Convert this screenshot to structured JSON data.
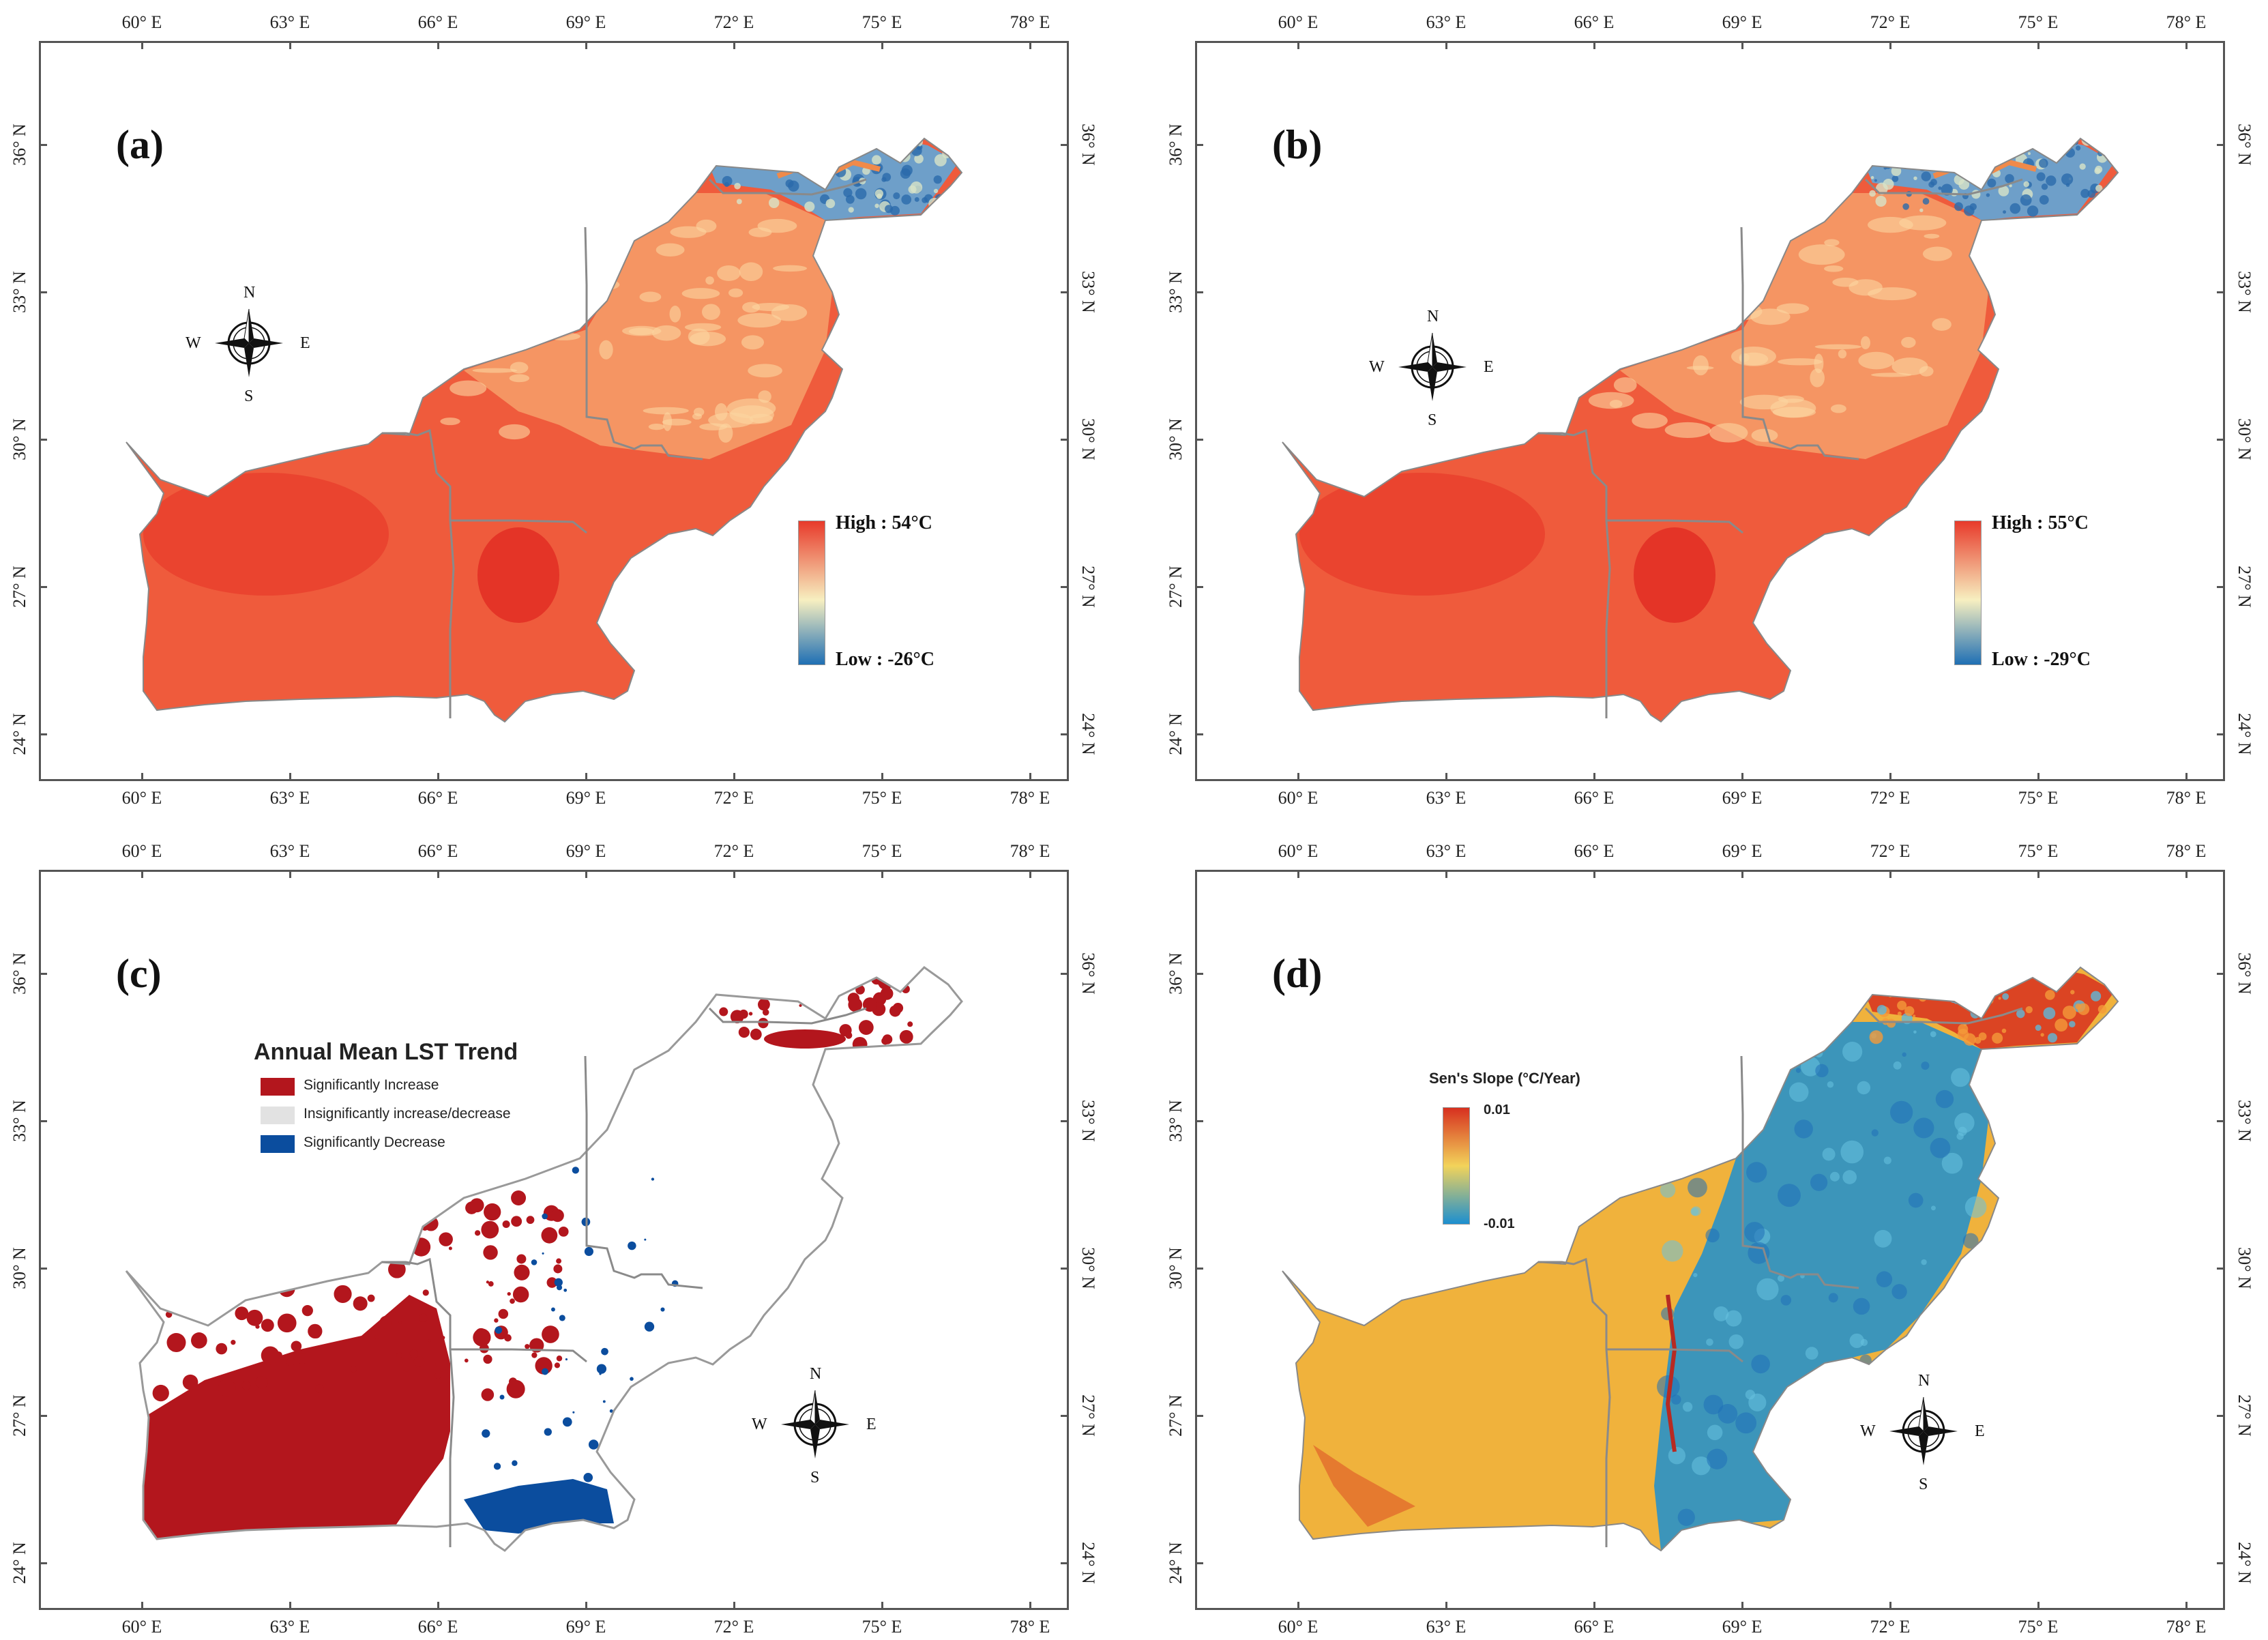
{
  "axes": {
    "lon_labels": [
      "60° E",
      "63° E",
      "66° E",
      "69° E",
      "72° E",
      "75° E",
      "78° E"
    ],
    "lat_labels": [
      "24° N",
      "27° N",
      "30° N",
      "33° N",
      "36° N"
    ]
  },
  "panels": [
    {
      "id": "a",
      "label": "(a)",
      "type": "lst",
      "legend": {
        "high": "High : 54°C",
        "low": "Low : -26°C"
      },
      "compass": {
        "n": "N",
        "s": "S",
        "e": "E",
        "w": "W"
      }
    },
    {
      "id": "b",
      "label": "(b)",
      "type": "lst",
      "legend": {
        "high": "High : 55°C",
        "low": "Low : -29°C"
      },
      "compass": {
        "n": "N",
        "s": "S",
        "e": "E",
        "w": "W"
      }
    },
    {
      "id": "c",
      "label": "(c)",
      "type": "trend",
      "legend": {
        "title": "Annual Mean LST Trend",
        "items": [
          "Significantly Increase",
          "Insignificantly increase/decrease",
          "Significantly Decrease"
        ]
      },
      "compass": {
        "n": "N",
        "s": "S",
        "e": "E",
        "w": "W"
      }
    },
    {
      "id": "d",
      "label": "(d)",
      "type": "slope",
      "legend": {
        "title": "Sen's Slope (°C/Year)",
        "high": "0.01",
        "low": "-0.01"
      },
      "compass": {
        "n": "N",
        "s": "S",
        "e": "E",
        "w": "W"
      }
    }
  ],
  "colors": {
    "lst_high": "#e83a2a",
    "lst_mid": "#f7efc0",
    "lst_low": "#1f6fb4",
    "trend_increase": "#b3161d",
    "trend_insignificant": "#e2e2e2",
    "trend_decrease": "#0b4d9e",
    "slope_high": "#d7301f",
    "slope_mid": "#f2d35a",
    "slope_low": "#1c8fd0"
  }
}
